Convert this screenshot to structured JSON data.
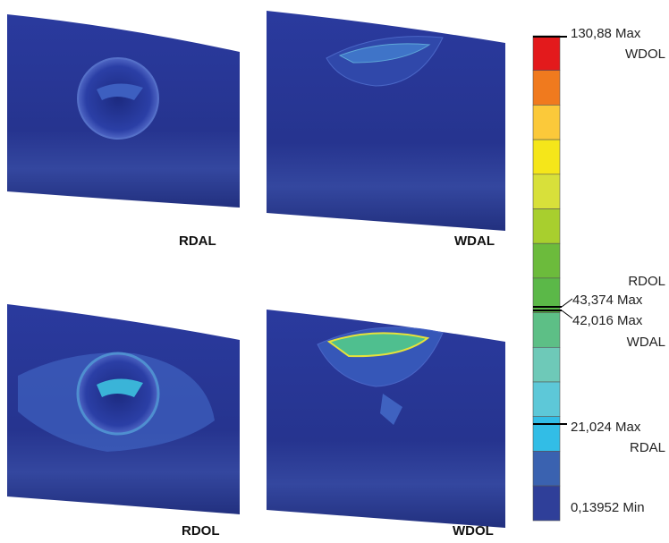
{
  "panels": [
    {
      "label": "RDAL"
    },
    {
      "label": "WDAL"
    },
    {
      "label": "RDOL"
    },
    {
      "label": "WDOL"
    }
  ],
  "legend": {
    "labels": [
      "130,88 Max",
      "WDOL",
      "RDOL",
      "43,374 Max",
      "42,016 Max",
      "WDAL",
      "21,024 Max",
      "RDAL",
      "0,13952 Min"
    ]
  }
}
